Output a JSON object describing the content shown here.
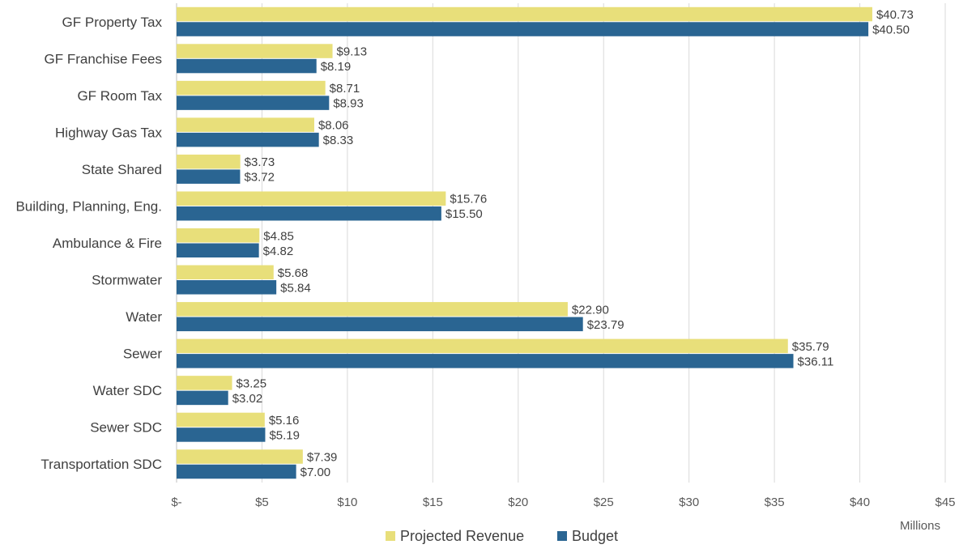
{
  "chart_data": {
    "type": "bar",
    "orientation": "horizontal",
    "categories": [
      "GF Property Tax",
      "GF Franchise Fees",
      "GF Room Tax",
      "Highway Gas Tax",
      "State Shared",
      "Building, Planning, Eng.",
      "Ambulance & Fire",
      "Stormwater",
      "Water",
      "Sewer",
      "Water SDC",
      "Sewer SDC",
      "Transportation SDC"
    ],
    "series": [
      {
        "name": "Projected Revenue",
        "color": "#e8df7a",
        "values": [
          40.73,
          9.13,
          8.71,
          8.06,
          3.73,
          15.76,
          4.85,
          5.68,
          22.9,
          35.79,
          3.25,
          5.16,
          7.39
        ],
        "labels": [
          "$40.73",
          "$9.13",
          "$8.71",
          "$8.06",
          "$3.73",
          "$15.76",
          "$4.85",
          "$5.68",
          "$22.90",
          "$35.79",
          "$3.25",
          "$5.16",
          "$7.39"
        ]
      },
      {
        "name": "Budget",
        "color": "#2a6592",
        "values": [
          40.5,
          8.19,
          8.93,
          8.33,
          3.72,
          15.5,
          4.82,
          5.84,
          23.79,
          36.11,
          3.02,
          5.19,
          7.0
        ],
        "labels": [
          "$40.50",
          "$8.19",
          "$8.93",
          "$8.33",
          "$3.72",
          "$15.50",
          "$4.82",
          "$5.84",
          "$23.79",
          "$36.11",
          "$3.02",
          "$5.19",
          "$7.00"
        ]
      }
    ],
    "xlim": [
      0,
      45
    ],
    "x_ticks": [
      0,
      5,
      10,
      15,
      20,
      25,
      30,
      35,
      40,
      45
    ],
    "x_tick_labels": [
      "$-",
      "$5",
      "$10",
      "$15",
      "$20",
      "$25",
      "$30",
      "$35",
      "$40",
      "$45"
    ],
    "x_unit_label": "Millions",
    "grid": true,
    "legend_position": "bottom"
  }
}
